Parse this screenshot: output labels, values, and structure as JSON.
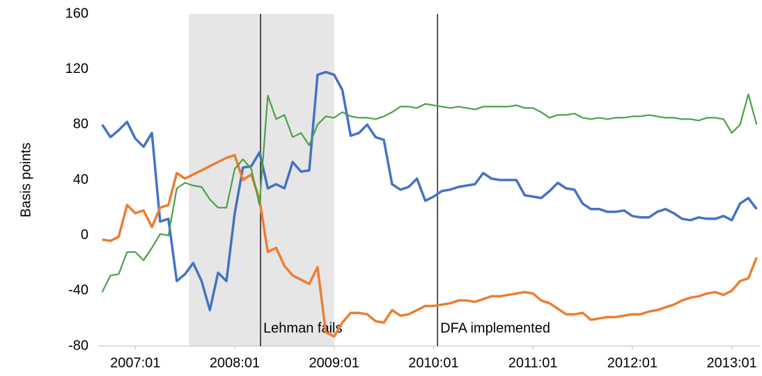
{
  "chart_data": {
    "type": "line",
    "y_label": "Basis points",
    "x": [
      2006.667,
      2006.75,
      2006.833,
      2006.917,
      2007.0,
      2007.083,
      2007.167,
      2007.25,
      2007.333,
      2007.417,
      2007.5,
      2007.583,
      2007.667,
      2007.75,
      2007.833,
      2007.917,
      2008.0,
      2008.083,
      2008.167,
      2008.25,
      2008.333,
      2008.417,
      2008.5,
      2008.583,
      2008.667,
      2008.75,
      2008.833,
      2008.917,
      2009.0,
      2009.083,
      2009.167,
      2009.25,
      2009.333,
      2009.417,
      2009.5,
      2009.583,
      2009.667,
      2009.75,
      2009.833,
      2009.917,
      2010.0,
      2010.083,
      2010.167,
      2010.25,
      2010.333,
      2010.417,
      2010.5,
      2010.583,
      2010.667,
      2010.75,
      2010.833,
      2010.917,
      2011.0,
      2011.083,
      2011.167,
      2011.25,
      2011.333,
      2011.417,
      2011.5,
      2011.583,
      2011.667,
      2011.75,
      2011.833,
      2011.917,
      2012.0,
      2012.083,
      2012.167,
      2012.25,
      2012.333,
      2012.417,
      2012.5,
      2012.583,
      2012.667,
      2012.75,
      2012.833,
      2012.917,
      2013.0,
      2013.083,
      2013.167,
      2013.25
    ],
    "series": [
      {
        "color": "#4472c4",
        "line_width": 3.5,
        "values": [
          80,
          71,
          76,
          82,
          70,
          64,
          74,
          10,
          12,
          -33,
          -28,
          -20,
          -33,
          -54,
          -27,
          -33,
          16,
          49,
          50,
          60,
          34,
          37,
          34,
          53,
          46,
          47,
          116,
          118,
          116,
          105,
          72,
          74,
          80,
          71,
          69,
          37,
          33,
          35,
          41,
          25,
          28,
          32,
          33,
          35,
          36,
          37,
          45,
          41,
          40,
          40,
          40,
          29,
          28,
          27,
          32,
          38,
          34,
          33,
          23,
          19,
          19,
          17,
          17,
          18,
          14,
          13,
          13,
          17,
          19,
          16,
          12,
          11,
          13,
          12,
          12,
          14,
          11,
          23,
          27,
          19
        ]
      },
      {
        "color": "#ed7d31",
        "line_width": 3.5,
        "values": [
          -3,
          -4,
          -1,
          22,
          16,
          18,
          6,
          20,
          22,
          45,
          41,
          44,
          47,
          50,
          53,
          56,
          58,
          40,
          44,
          26,
          -12,
          -9,
          -22,
          -29,
          -32,
          -35,
          -23,
          -70,
          -73,
          -63,
          -56,
          -56,
          -57,
          -62,
          -63,
          -54,
          -58,
          -57,
          -54,
          -51,
          -51,
          -50,
          -49,
          -47,
          -47,
          -48,
          -46,
          -44,
          -44,
          -43,
          -42,
          -41,
          -42,
          -47,
          -49,
          -53,
          -57,
          -57,
          -56,
          -61,
          -60,
          -59,
          -59,
          -58,
          -57,
          -57,
          -55,
          -54,
          -52,
          -50,
          -47,
          -45,
          -44,
          -42,
          -41,
          -43,
          -40,
          -33,
          -31,
          -16
        ]
      },
      {
        "color": "#4aa047",
        "line_width": 2.2,
        "values": [
          -41,
          -29,
          -28,
          -12,
          -12,
          -18,
          -9,
          1,
          0,
          34,
          38,
          36,
          35,
          26,
          20,
          20,
          48,
          55,
          48,
          22,
          101,
          84,
          87,
          71,
          74,
          65,
          80,
          86,
          85,
          89,
          86,
          85,
          85,
          84,
          86,
          89,
          93,
          93,
          92,
          95,
          94,
          93,
          92,
          93,
          92,
          91,
          93,
          93,
          93,
          93,
          94,
          92,
          92,
          89,
          85,
          87,
          87,
          88,
          85,
          84,
          85,
          84,
          85,
          85,
          86,
          86,
          87,
          86,
          85,
          85,
          84,
          84,
          83,
          85,
          85,
          84,
          74,
          80,
          102,
          80
        ]
      }
    ],
    "xlim": [
      2006.62,
      2013.29
    ],
    "xticks": [
      {
        "value": 2007.0,
        "label": "2007:01"
      },
      {
        "value": 2008.0,
        "label": "2008:01"
      },
      {
        "value": 2009.0,
        "label": "2009:01"
      },
      {
        "value": 2010.0,
        "label": "2010:01"
      },
      {
        "value": 2011.0,
        "label": "2011:01"
      },
      {
        "value": 2012.0,
        "label": "2012:01"
      },
      {
        "value": 2013.0,
        "label": "2013:01"
      }
    ],
    "ylim": [
      -80,
      160
    ],
    "yticks": [
      -80,
      -40,
      0,
      40,
      80,
      120,
      160
    ],
    "grid": false,
    "shaded_band": {
      "from": 2007.54,
      "to": 2009.0,
      "color": "#e6e6e6"
    },
    "events": [
      {
        "x": 2008.26,
        "text": "Lehman fails"
      },
      {
        "x": 2010.04,
        "text": "DFA implemented"
      }
    ]
  }
}
